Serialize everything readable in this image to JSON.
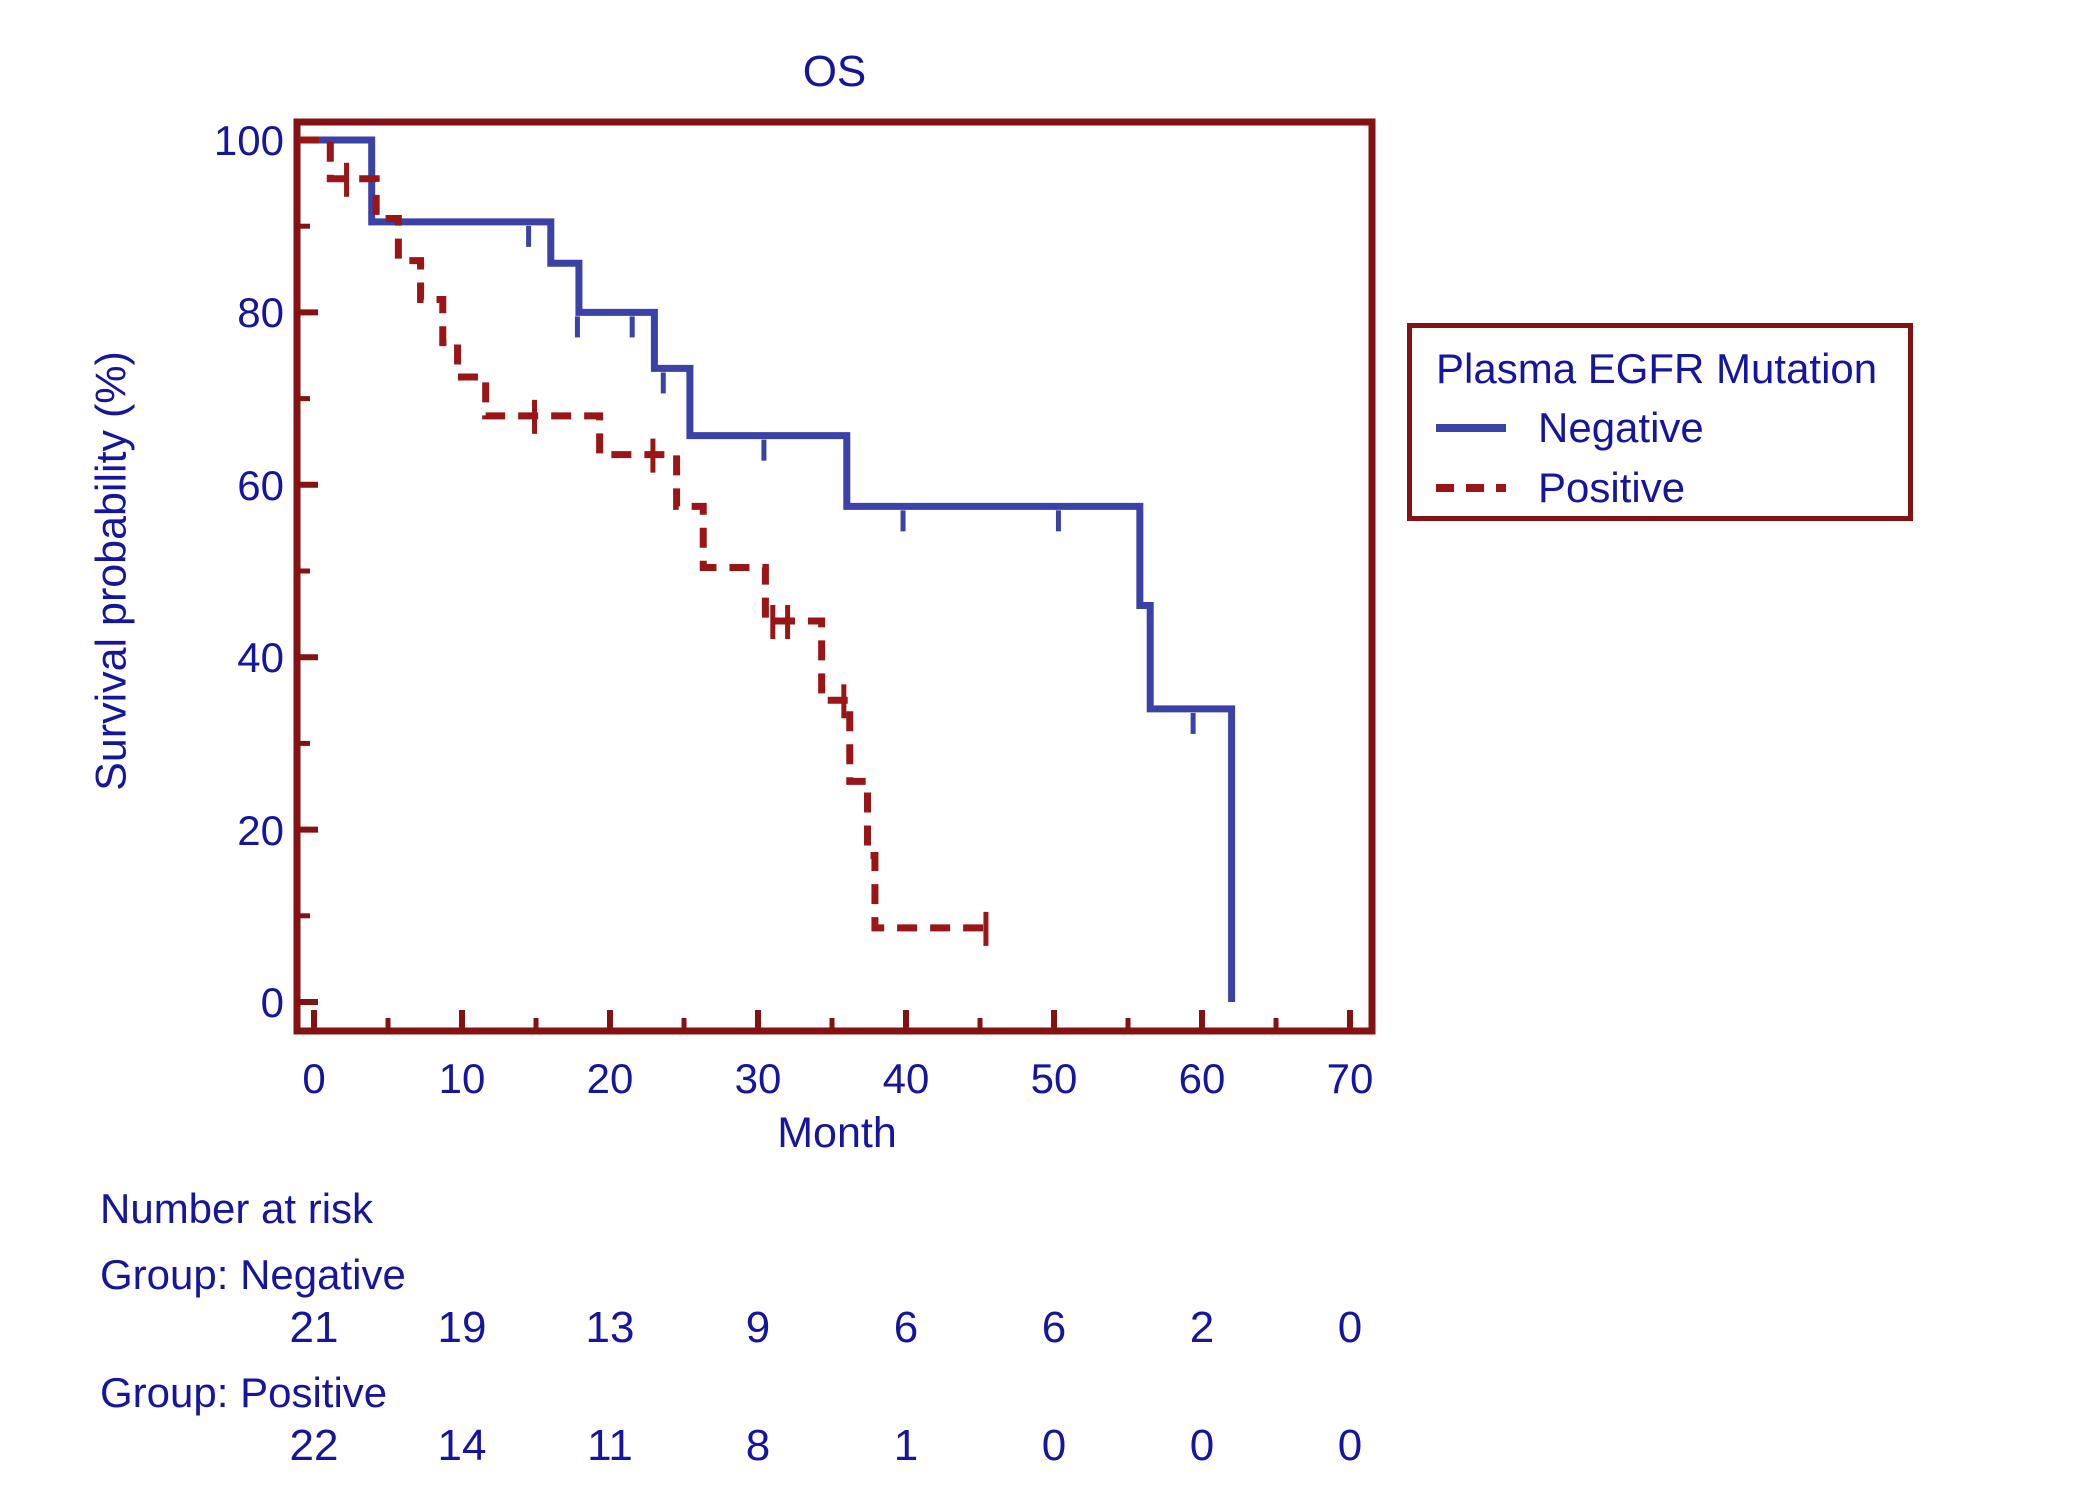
{
  "colors": {
    "text": "#15159E",
    "frame": "#841212",
    "negative_line": "#3A42A8",
    "positive_line": "#9A1515",
    "background": "#FFFFFF"
  },
  "chart_data": {
    "type": "line",
    "subtype": "kaplan-meier-step",
    "title": "OS",
    "xlabel": "Month",
    "ylabel": "Survival probability (%)",
    "xlim": [
      0,
      70
    ],
    "ylim": [
      0,
      100
    ],
    "x_ticks": [
      0,
      10,
      20,
      30,
      40,
      50,
      60,
      70
    ],
    "x_minor_ticks": [
      5,
      15,
      25,
      35,
      45,
      55,
      65
    ],
    "y_ticks": [
      0,
      20,
      40,
      60,
      80,
      100
    ],
    "y_minor_ticks": [
      10,
      30,
      50,
      70,
      90
    ],
    "grid": "off",
    "legend": {
      "title": "Plasma EGFR Mutation",
      "position": "right-outside",
      "entries": [
        {
          "label": "Negative",
          "line_style": "solid",
          "color": "#3A42A8"
        },
        {
          "label": "Positive",
          "line_style": "dashed",
          "color": "#9A1515"
        }
      ]
    },
    "series": [
      {
        "name": "Negative",
        "color": "#3A42A8",
        "style": "solid",
        "steps": [
          [
            0,
            100
          ],
          [
            3.9,
            90.5
          ],
          [
            16,
            85.7
          ],
          [
            17.9,
            80
          ],
          [
            23.0,
            73.5
          ],
          [
            25.4,
            65.7
          ],
          [
            36,
            57.5
          ],
          [
            55.8,
            46
          ],
          [
            56.5,
            34
          ],
          [
            62,
            0
          ]
        ],
        "end_month": 62,
        "censors": [
          [
            14.5,
            90.5
          ],
          [
            17.8,
            80
          ],
          [
            21.5,
            80
          ],
          [
            23.6,
            73.5
          ],
          [
            30.4,
            65.7
          ],
          [
            39.8,
            57.5
          ],
          [
            50.3,
            57.5
          ],
          [
            59.4,
            34
          ]
        ]
      },
      {
        "name": "Positive",
        "color": "#9A1515",
        "style": "dashed",
        "steps": [
          [
            0,
            100
          ],
          [
            1.1,
            95.5
          ],
          [
            4.2,
            90.9
          ],
          [
            5.7,
            86
          ],
          [
            7.2,
            81.5
          ],
          [
            8.7,
            76.5
          ],
          [
            9.7,
            72.5
          ],
          [
            11.6,
            68
          ],
          [
            19.3,
            63.5
          ],
          [
            24.5,
            57.5
          ],
          [
            26.3,
            50.4
          ],
          [
            30.5,
            44.2
          ],
          [
            34.3,
            35
          ],
          [
            36.2,
            25.6
          ],
          [
            37.4,
            17
          ],
          [
            37.9,
            8.6
          ]
        ],
        "end_month": 45.4,
        "censors": [
          [
            2.2,
            95.5
          ],
          [
            14.9,
            68
          ],
          [
            22.9,
            63.5
          ],
          [
            31.0,
            44.2
          ],
          [
            32.0,
            44.2
          ],
          [
            35.8,
            35
          ],
          [
            45.4,
            8.6
          ]
        ]
      }
    ],
    "risk_table": {
      "header": "Number at risk",
      "months": [
        0,
        10,
        20,
        30,
        40,
        50,
        60,
        70
      ],
      "groups": [
        {
          "label": "Group: Negative",
          "counts": [
            21,
            19,
            13,
            9,
            6,
            6,
            2,
            0
          ]
        },
        {
          "label": "Group: Positive",
          "counts": [
            22,
            14,
            11,
            8,
            1,
            0,
            0,
            0
          ]
        }
      ]
    }
  }
}
